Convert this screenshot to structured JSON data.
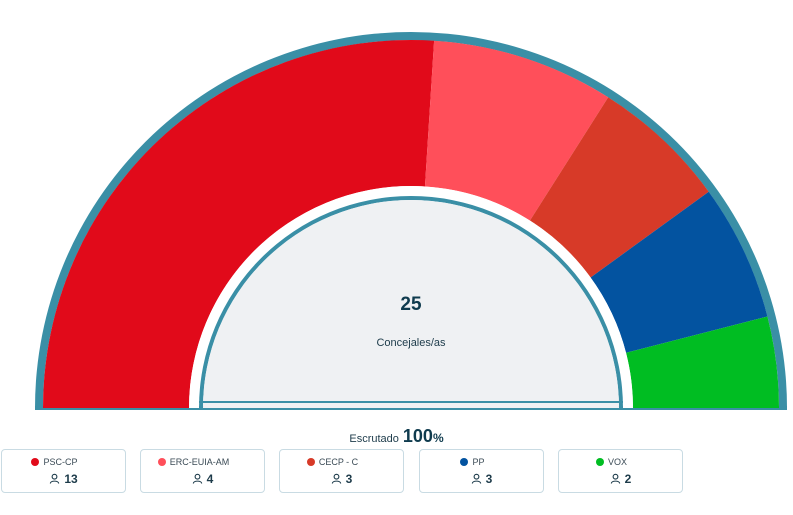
{
  "chart_data": {
    "type": "hemicycle",
    "total_seats": 25,
    "center_number": "25",
    "center_label": "Concejales/as",
    "parties": [
      {
        "name": "PSC-CP",
        "seats": 13,
        "color": "#e10a1a"
      },
      {
        "name": "ERC-EUIA-AM",
        "seats": 4,
        "color": "#ff4f5a"
      },
      {
        "name": "CECP - C",
        "seats": 3,
        "color": "#d73a28"
      },
      {
        "name": "PP",
        "seats": 3,
        "color": "#0353a0"
      },
      {
        "name": "VOX",
        "seats": 2,
        "color": "#00bd22"
      }
    ]
  },
  "scrutiny": {
    "label": "Escrutado",
    "value": "100",
    "unit": "%"
  },
  "colors": {
    "ring": "#3a8fa6",
    "inner_fill": "#eff1f3",
    "text": "#1d3b4a"
  },
  "icons": {
    "seats": "person-icon"
  }
}
